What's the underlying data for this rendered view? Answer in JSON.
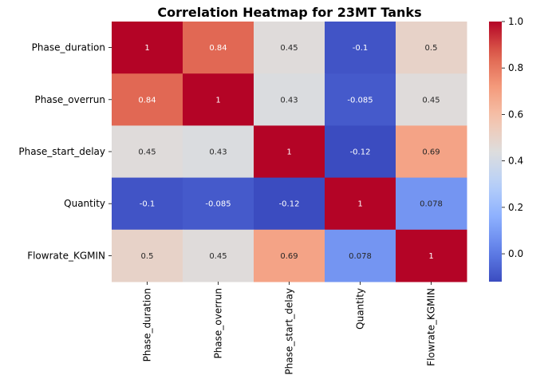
{
  "chart_data": {
    "type": "heatmap",
    "title": "Correlation Heatmap for 23MT Tanks",
    "xlabel": "",
    "ylabel": "",
    "x_categories": [
      "Phase_duration",
      "Phase_overrun",
      "Phase_start_delay",
      "Quantity",
      "Flowrate_KGMIN"
    ],
    "y_categories": [
      "Phase_duration",
      "Phase_overrun",
      "Phase_start_delay",
      "Quantity",
      "Flowrate_KGMIN"
    ],
    "values": [
      [
        1,
        0.84,
        0.45,
        -0.1,
        0.5
      ],
      [
        0.84,
        1,
        0.43,
        -0.085,
        0.45
      ],
      [
        0.45,
        0.43,
        1,
        -0.12,
        0.69
      ],
      [
        -0.1,
        -0.085,
        -0.12,
        1,
        0.078
      ],
      [
        0.5,
        0.45,
        0.69,
        0.078,
        1
      ]
    ],
    "annotations": [
      [
        "1",
        "0.84",
        "0.45",
        "-0.1",
        "0.5"
      ],
      [
        "0.84",
        "1",
        "0.43",
        "-0.085",
        "0.45"
      ],
      [
        "0.45",
        "0.43",
        "1",
        "-0.12",
        "0.69"
      ],
      [
        "-0.1",
        "-0.085",
        "-0.12",
        "1",
        "0.078"
      ],
      [
        "0.5",
        "0.45",
        "0.69",
        "0.078",
        "1"
      ]
    ],
    "colormap": "coolwarm",
    "colorbar": {
      "vmin": -0.12,
      "vmax": 1.0,
      "ticks": [
        0.0,
        0.2,
        0.4,
        0.6,
        0.8,
        1.0
      ],
      "tick_labels": [
        "0.0",
        "0.2",
        "0.4",
        "0.6",
        "0.8",
        "1.0"
      ]
    },
    "grid": false,
    "legend": "colorbar-right"
  }
}
